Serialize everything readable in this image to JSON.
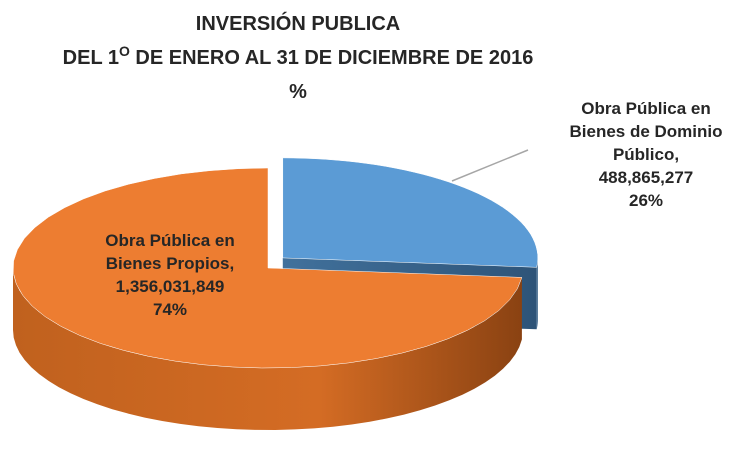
{
  "chart_data": {
    "type": "pie3d",
    "title_lines": [
      "INVERSIÓN PUBLICA",
      "%"
    ],
    "subtitle": {
      "before": "DEL 1",
      "sup": "O",
      "after": " DE ENERO AL 31 DE DICIEMBRE  DE 2016"
    },
    "categories": [
      "Obra Pública en Bienes de Dominio Público,",
      "Obra Pública en Bienes Propios,"
    ],
    "values": [
      488865277,
      1356031849
    ],
    "value_labels": [
      "488,865,277",
      "1,356,031,849"
    ],
    "percentages": [
      26,
      74
    ],
    "percent_labels": [
      "26%",
      "74%"
    ],
    "colors": [
      "#5b9bd5",
      "#ed7d31"
    ],
    "exploded": [
      true,
      false
    ]
  }
}
